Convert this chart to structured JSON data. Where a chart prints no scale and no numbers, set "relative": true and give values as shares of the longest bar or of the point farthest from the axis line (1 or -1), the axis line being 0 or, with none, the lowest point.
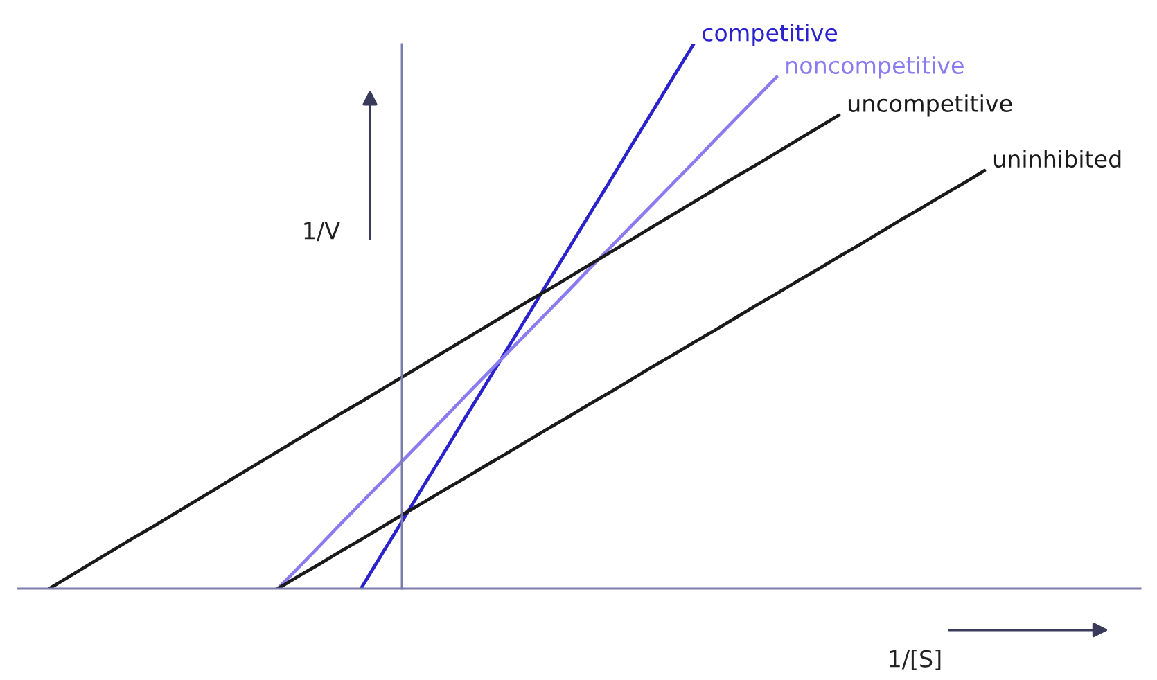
{
  "chart_data": {
    "type": "line",
    "xlabel": "1/[S]",
    "ylabel": "1/V",
    "relative": true,
    "categories": [
      null,
      null,
      null,
      null,
      null,
      null,
      null,
      null,
      null,
      null,
      null,
      null,
      null,
      null,
      null,
      null,
      null,
      null,
      null,
      null,
      null,
      null,
      null,
      null,
      null,
      null,
      null,
      null,
      null,
      null,
      null,
      null,
      null,
      null,
      null,
      null,
      null,
      null,
      null,
      null,
      null,
      null,
      null,
      null,
      null,
      null,
      null,
      null,
      null,
      null,
      null,
      null,
      null,
      null
    ],
    "series": [
      {
        "name": "competitive",
        "color": "#2a22cc",
        "values": [
          null,
          null,
          null,
          null,
          null,
          null,
          null,
          null,
          null,
          null,
          null,
          null,
          null,
          null,
          null,
          null,
          0,
          0.063,
          0.125,
          0.188,
          0.25,
          0.313,
          0.375,
          0.438,
          0.5,
          0.563,
          0.625,
          0.688,
          0.75,
          0.813,
          0.875,
          0.938,
          1,
          null,
          null,
          null,
          null,
          null,
          null,
          null,
          null,
          null,
          null,
          null,
          null,
          null,
          null,
          null,
          null,
          null,
          null,
          null,
          null,
          null
        ]
      },
      {
        "name": "noncompetitive",
        "color": "#8a7cf0",
        "values": [
          null,
          null,
          null,
          null,
          null,
          null,
          null,
          null,
          null,
          null,
          null,
          null,
          0,
          0.039,
          0.078,
          0.118,
          0.157,
          0.196,
          0.235,
          0.274,
          0.313,
          0.353,
          0.392,
          0.431,
          0.47,
          0.509,
          0.548,
          0.588,
          0.627,
          0.666,
          0.705,
          0.744,
          0.783,
          0.823,
          0.862,
          0.901,
          0.94,
          null,
          null,
          null,
          null,
          null,
          null,
          null,
          null,
          null,
          null,
          null,
          null,
          null,
          null,
          null,
          null,
          null
        ]
      },
      {
        "name": "uncompetitive",
        "color": "#1a1a1a",
        "values": [
          null,
          0,
          0.023,
          0.046,
          0.069,
          0.092,
          0.114,
          0.137,
          0.16,
          0.183,
          0.206,
          0.229,
          0.252,
          0.275,
          0.298,
          0.321,
          0.343,
          0.366,
          0.389,
          0.412,
          0.435,
          0.458,
          0.481,
          0.504,
          0.527,
          0.549,
          0.572,
          0.595,
          0.618,
          0.641,
          0.664,
          0.687,
          0.71,
          0.733,
          0.756,
          0.778,
          0.801,
          0.824,
          0.847,
          0.87,
          null,
          null,
          null,
          null,
          null,
          null,
          null,
          null,
          null,
          null,
          null,
          null,
          null,
          null
        ]
      },
      {
        "name": "uninhibited",
        "color": "#1a1a1a",
        "values": [
          null,
          null,
          null,
          null,
          null,
          null,
          null,
          null,
          null,
          null,
          null,
          null,
          0,
          0.023,
          0.045,
          0.068,
          0.09,
          0.113,
          0.136,
          0.158,
          0.181,
          0.203,
          0.226,
          0.248,
          0.271,
          0.294,
          0.316,
          0.339,
          0.361,
          0.384,
          0.407,
          0.429,
          0.452,
          0.474,
          0.497,
          0.52,
          0.542,
          0.565,
          0.587,
          0.61,
          0.632,
          0.655,
          0.678,
          0.7,
          0.723,
          0.745,
          0.768,
          null,
          null,
          null,
          null,
          null,
          null,
          null
        ]
      }
    ]
  }
}
